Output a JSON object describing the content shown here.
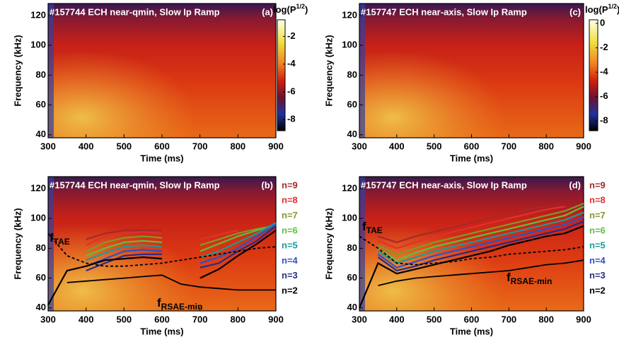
{
  "chart_data": [
    {
      "type": "spectrogram",
      "title": "#157744 ECH near-qmin, Slow Ip Ramp",
      "panel": "(a)",
      "xlabel": "Time (ms)",
      "ylabel": "Frequency (kHz)",
      "xlim": [
        300,
        900
      ],
      "xticks": [
        300,
        400,
        500,
        600,
        700,
        800,
        900
      ],
      "ylim": [
        38,
        128
      ],
      "yticks": [
        40,
        60,
        80,
        100,
        120
      ],
      "colorbar_label": {
        "base": "log(P",
        "sup": "1/2",
        "tail": ")"
      },
      "clim": [
        -8.8,
        -0.8
      ],
      "cticks": [
        -2,
        -4,
        -6,
        -8
      ]
    },
    {
      "type": "line",
      "title": "#157744 ECH near-qmin, Slow Ip Ramp",
      "panel": "(b)",
      "xlabel": "Time (ms)",
      "ylabel": "Frequency (kHz)",
      "xlim": [
        300,
        900
      ],
      "xticks": [
        300,
        400,
        500,
        600,
        700,
        800,
        900
      ],
      "ylim": [
        38,
        128
      ],
      "yticks": [
        40,
        60,
        80,
        100,
        120
      ],
      "x": [
        300,
        350,
        400,
        450,
        500,
        550,
        600,
        650,
        700,
        750,
        800,
        850,
        900
      ],
      "series": [
        {
          "name": "n=9",
          "color": "#a82828",
          "values": [
            null,
            null,
            86,
            90,
            92,
            92,
            92,
            null,
            null,
            null,
            null,
            null,
            null
          ]
        },
        {
          "name": "n=8",
          "color": "#e03030",
          "values": [
            null,
            null,
            82,
            88,
            90,
            91,
            90,
            null,
            86,
            89,
            92,
            null,
            null
          ]
        },
        {
          "name": "n=7",
          "color": "#7f9a2a",
          "values": [
            null,
            null,
            78,
            84,
            87,
            88,
            87,
            null,
            82,
            86,
            90,
            93,
            95
          ]
        },
        {
          "name": "n=6",
          "color": "#5cc040",
          "values": [
            null,
            null,
            75,
            80,
            84,
            85,
            84,
            null,
            78,
            83,
            88,
            92,
            96
          ]
        },
        {
          "name": "n=5",
          "color": "#1a9a9a",
          "values": [
            null,
            null,
            72,
            77,
            81,
            82,
            81,
            null,
            74,
            78,
            84,
            90,
            97
          ]
        },
        {
          "name": "n=4",
          "color": "#3050c8",
          "values": [
            null,
            null,
            68,
            73,
            78,
            79,
            78,
            null,
            70,
            74,
            80,
            88,
            96
          ]
        },
        {
          "name": "n=3",
          "color": "#2a2a8a",
          "values": [
            null,
            null,
            65,
            70,
            75,
            76,
            76,
            null,
            67,
            70,
            78,
            85,
            95
          ]
        },
        {
          "name": "n=2",
          "color": "#000000",
          "values": [
            42,
            65,
            68,
            72,
            73,
            74,
            73,
            null,
            60,
            66,
            75,
            83,
            92
          ]
        }
      ],
      "lines": [
        {
          "label": {
            "text": "f",
            "sub": "TAE"
          },
          "dash": true,
          "values": [
            90,
            75,
            70,
            68,
            68,
            69,
            70,
            72,
            74,
            76,
            78,
            80,
            81
          ]
        },
        {
          "label": {
            "text": "f",
            "sub": "RSAE-min"
          },
          "dash": false,
          "values": [
            null,
            57,
            58,
            59,
            60,
            61,
            62,
            56,
            54,
            53,
            52,
            52,
            52
          ]
        }
      ]
    },
    {
      "type": "spectrogram",
      "title": "#157747 ECH near-axis, Slow Ip Ramp",
      "panel": "(c)",
      "xlabel": "Time (ms)",
      "ylabel": "Frequency (kHz)",
      "xlim": [
        300,
        900
      ],
      "xticks": [
        300,
        400,
        500,
        600,
        700,
        800,
        900
      ],
      "ylim": [
        38,
        128
      ],
      "yticks": [
        40,
        60,
        80,
        100,
        120
      ],
      "colorbar_label": {
        "base": "log(P",
        "sup": "1/2",
        "tail": ")"
      },
      "clim": [
        -8.8,
        0.3
      ],
      "cticks": [
        0,
        -2,
        -4,
        -6,
        -8
      ]
    },
    {
      "type": "line",
      "title": "#157747 ECH near-axis, Slow Ip Ramp",
      "panel": "(d)",
      "xlabel": "Time (ms)",
      "ylabel": "Frequency (kHz)",
      "xlim": [
        300,
        900
      ],
      "xticks": [
        300,
        400,
        500,
        600,
        700,
        800,
        900
      ],
      "ylim": [
        38,
        128
      ],
      "yticks": [
        40,
        60,
        80,
        100,
        120
      ],
      "x": [
        300,
        350,
        400,
        450,
        500,
        550,
        600,
        650,
        700,
        750,
        800,
        850,
        900
      ],
      "series": [
        {
          "name": "n=9",
          "color": "#a82828",
          "values": [
            null,
            88,
            84,
            88,
            91,
            94,
            97,
            100,
            103,
            106,
            108,
            null,
            null
          ]
        },
        {
          "name": "n=8",
          "color": "#e03030",
          "values": [
            null,
            85,
            80,
            84,
            88,
            91,
            94,
            97,
            100,
            103,
            106,
            108,
            null
          ]
        },
        {
          "name": "n=7",
          "color": "#7f9a2a",
          "values": [
            null,
            82,
            76,
            80,
            84,
            87,
            90,
            93,
            96,
            99,
            102,
            105,
            110
          ]
        },
        {
          "name": "n=6",
          "color": "#5cc040",
          "values": [
            null,
            80,
            72,
            77,
            81,
            84,
            87,
            90,
            93,
            96,
            99,
            102,
            108
          ]
        },
        {
          "name": "n=5",
          "color": "#1a9a9a",
          "values": [
            null,
            78,
            70,
            74,
            78,
            81,
            84,
            87,
            90,
            93,
            96,
            99,
            104
          ]
        },
        {
          "name": "n=4",
          "color": "#3050c8",
          "values": [
            null,
            76,
            67,
            71,
            75,
            78,
            81,
            84,
            87,
            90,
            93,
            96,
            101
          ]
        },
        {
          "name": "n=3",
          "color": "#2a2a8a",
          "values": [
            null,
            74,
            65,
            68,
            72,
            75,
            78,
            81,
            84,
            87,
            90,
            93,
            98
          ]
        },
        {
          "name": "n=2",
          "color": "#000000",
          "values": [
            40,
            70,
            63,
            66,
            69,
            72,
            75,
            78,
            82,
            85,
            88,
            90,
            95
          ]
        }
      ],
      "lines": [
        {
          "label": {
            "text": "f",
            "sub": "TAE"
          },
          "dash": true,
          "values": [
            88,
            80,
            70,
            69,
            70,
            71,
            73,
            74,
            76,
            77,
            78,
            79,
            81
          ]
        },
        {
          "label": {
            "text": "f",
            "sub": "RSAE-min"
          },
          "dash": false,
          "values": [
            null,
            55,
            58,
            60,
            61,
            62,
            63,
            64,
            65,
            67,
            69,
            70,
            72
          ]
        }
      ]
    }
  ]
}
